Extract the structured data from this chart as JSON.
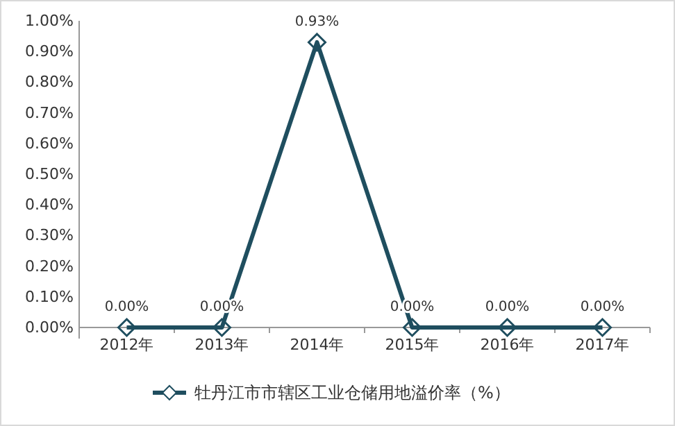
{
  "chart_data": {
    "type": "line",
    "categories": [
      "2012年",
      "2013年",
      "2014年",
      "2015年",
      "2016年",
      "2017年"
    ],
    "series": [
      {
        "name": "牡丹江市市辖区工业仓储用地溢价率（%）",
        "color": "#1f4e5f",
        "values": [
          0,
          0,
          0.93,
          0,
          0,
          0
        ],
        "value_labels": [
          "0.00%",
          "0.00%",
          "0.93%",
          "0.00%",
          "0.00%",
          "0.00%"
        ]
      }
    ],
    "ylim": [
      0,
      1
    ],
    "yticks": [
      {
        "value": 0,
        "label": "0.00%"
      },
      {
        "value": 0.1,
        "label": "0.10%"
      },
      {
        "value": 0.2,
        "label": "0.20%"
      },
      {
        "value": 0.3,
        "label": "0.30%"
      },
      {
        "value": 0.4,
        "label": "0.40%"
      },
      {
        "value": 0.5,
        "label": "0.50%"
      },
      {
        "value": 0.6,
        "label": "0.60%"
      },
      {
        "value": 0.7,
        "label": "0.70%"
      },
      {
        "value": 0.8,
        "label": "0.80%"
      },
      {
        "value": 0.9,
        "label": "0.90%"
      },
      {
        "value": 1,
        "label": "1.00%"
      }
    ],
    "marker": "diamond",
    "line_style": "solid",
    "legend": "bottom"
  }
}
